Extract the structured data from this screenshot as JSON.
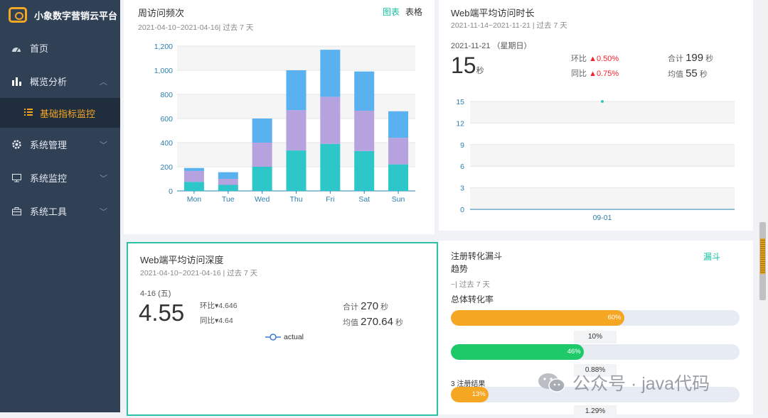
{
  "app": {
    "title": "小象数字营销云平台"
  },
  "sidebar": {
    "items": [
      {
        "label": "首页",
        "icon": "dashboard-icon"
      },
      {
        "label": "概览分析",
        "icon": "bar-chart-icon"
      },
      {
        "label": "基础指标监控",
        "icon": "list-icon"
      },
      {
        "label": "系统管理",
        "icon": "gear-icon"
      },
      {
        "label": "系统监控",
        "icon": "monitor-icon"
      },
      {
        "label": "系统工具",
        "icon": "toolbox-icon"
      }
    ]
  },
  "weekly": {
    "title": "周访问频次",
    "range": "2021-04-10~2021-04-16| 过去 7 天",
    "tab_chart": "图表",
    "tab_table": "表格"
  },
  "chart_data": [
    {
      "type": "bar",
      "stacked": true,
      "title": "周访问频次",
      "categories": [
        "Mon",
        "Tue",
        "Wed",
        "Thu",
        "Fri",
        "Sat",
        "Sun"
      ],
      "series": [
        {
          "values": [
            75,
            50,
            200,
            335,
            390,
            330,
            220
          ],
          "color": "#2ec7c9"
        },
        {
          "values": [
            90,
            50,
            200,
            335,
            390,
            335,
            220
          ],
          "color": "#b6a2de"
        },
        {
          "values": [
            25,
            55,
            200,
            330,
            390,
            325,
            220
          ],
          "color": "#5ab1ef"
        }
      ],
      "yticks": [
        "0",
        "200",
        "400",
        "600",
        "800",
        "1,000",
        "1,200"
      ],
      "ylim": [
        0,
        1200
      ],
      "grid": true
    },
    {
      "type": "line",
      "title": "Web端平均访问时长",
      "x": [
        "09-01"
      ],
      "series": [
        {
          "values": [
            15
          ],
          "color": "#2ec7c9"
        }
      ],
      "yticks": [
        "0",
        "3",
        "6",
        "9",
        "12",
        "15"
      ],
      "ylim": [
        0,
        15
      ],
      "grid": true
    }
  ],
  "duration": {
    "title": "Web端平均访问时长",
    "range": "2021-11-14~2021-11-21 | 过去 7 天",
    "date": "2021-11-21 （星期日）",
    "value": "15",
    "unit": "秒",
    "mom_label": "环比",
    "mom_value": "0.50%",
    "yoy_label": "同比",
    "yoy_value": "0.75%",
    "total_label": "合计",
    "total_value": "199",
    "avg_label": "均值",
    "avg_value": "55"
  },
  "depth": {
    "title": "Web端平均访问深度",
    "range": "2021-04-10~2021-04-16 | 过去 7 天",
    "date": "4-16 (五)",
    "value": "4.55",
    "mom_label": "环比",
    "mom_value": "4.646",
    "yoy_label": "同比",
    "yoy_value": "4.64",
    "total_label": "合计",
    "total_value": "270",
    "avg_label": "均值",
    "avg_value": "270.64",
    "unit": "秒",
    "legend": "actual"
  },
  "funnel": {
    "title": "注册转化漏斗",
    "subtitle": "趋势",
    "range": "~| 过去 7 天",
    "tab": "漏斗",
    "overall_label": "总体转化率",
    "steps": [
      {
        "percent": "60%",
        "level": 0.6,
        "color": "#f5a623"
      },
      {
        "percent": "46%",
        "level": 0.46,
        "color": "#1dc969"
      },
      {
        "percent": "13%",
        "level": 0.13,
        "color": "#f5a623",
        "label": "3 注册结果"
      }
    ],
    "rates": [
      "10%",
      "0.88%",
      "1.29%"
    ]
  },
  "watermark": {
    "text": "公众号 · java代码"
  }
}
